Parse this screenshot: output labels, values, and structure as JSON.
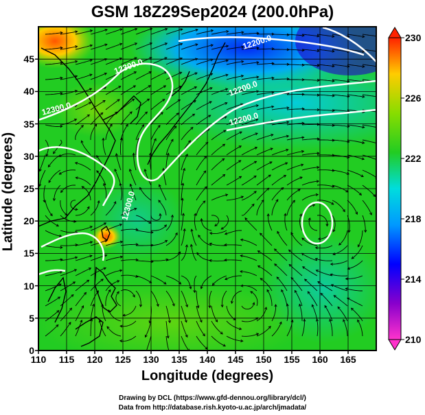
{
  "title": "GSM 18Z29Sep2024 (200.0hPa)",
  "xlabel": "Longitude (degrees)",
  "ylabel": "Latitude  (degrees)",
  "x_ticks": [
    "110",
    "115",
    "120",
    "125",
    "130",
    "135",
    "140",
    "145",
    "150",
    "155",
    "160",
    "165"
  ],
  "x_tick_values": [
    110,
    115,
    120,
    125,
    130,
    135,
    140,
    145,
    150,
    155,
    160,
    165
  ],
  "y_ticks": [
    "0",
    "5",
    "10",
    "15",
    "20",
    "25",
    "30",
    "35",
    "40",
    "45"
  ],
  "y_tick_values": [
    0,
    5,
    10,
    15,
    20,
    25,
    30,
    35,
    40,
    45
  ],
  "lon_range": [
    110,
    170
  ],
  "lat_range": [
    0,
    50
  ],
  "colorbar": {
    "ticks": [
      "210",
      "214",
      "218",
      "222",
      "226",
      "230"
    ],
    "values": [
      210,
      214,
      218,
      222,
      226,
      230
    ],
    "colors": [
      "#ff33cc",
      "#8800cc",
      "#0000ff",
      "#00aaff",
      "#00dddd",
      "#22cc22",
      "#88dd00",
      "#ffdd00",
      "#ff8800",
      "#ff2200"
    ]
  },
  "contour_labels": [
    "12200.0",
    "12300.0",
    "12300.0",
    "12200.0",
    "12200.0",
    "12300.0"
  ],
  "credits": [
    "Drawing by DCL (https://www.gfd-dennou.org/library/dcl/)",
    "Data from http://database.rish.kyoto-u.ac.jp/arch/jmadata/"
  ],
  "colors": {
    "cold": "#0033ff",
    "cool": "#00ccee",
    "warm": "#22dd22",
    "hot": "#ff6600",
    "contour": "#ffffff",
    "streamline": "#000000"
  }
}
